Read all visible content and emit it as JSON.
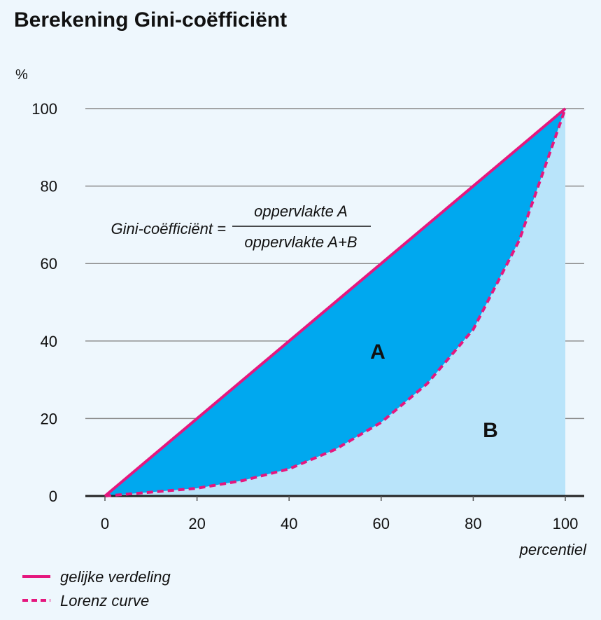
{
  "chart_data": {
    "type": "area",
    "title": "Berekening Gini-coëfficiënt",
    "ylabel": "%",
    "xlabel": "percentiel",
    "xlim": [
      0,
      100
    ],
    "ylim": [
      0,
      100
    ],
    "x_ticks": [
      0,
      20,
      40,
      60,
      80,
      100
    ],
    "y_ticks": [
      0,
      20,
      40,
      60,
      80,
      100
    ],
    "grid": true,
    "series": [
      {
        "name": "gelijke verdeling",
        "style": "solid",
        "color": "#e5177e",
        "x": [
          0,
          100
        ],
        "y": [
          0,
          100
        ]
      },
      {
        "name": "Lorenz curve",
        "style": "dashed",
        "color": "#e5177e",
        "x": [
          0,
          10,
          20,
          30,
          40,
          50,
          60,
          70,
          80,
          90,
          100
        ],
        "y": [
          0,
          1,
          2,
          4,
          7,
          12,
          19,
          29,
          43,
          66,
          100
        ]
      }
    ],
    "areas": {
      "A": {
        "label": "A",
        "color": "#00a8ef"
      },
      "B": {
        "label": "B",
        "color": "#b9e4fa"
      }
    },
    "formula": {
      "lhs": "Gini-coëfficiënt =",
      "numerator": "oppervlakte A",
      "denominator": "oppervlakte A+B"
    },
    "legend_placement": "bottom-left"
  }
}
